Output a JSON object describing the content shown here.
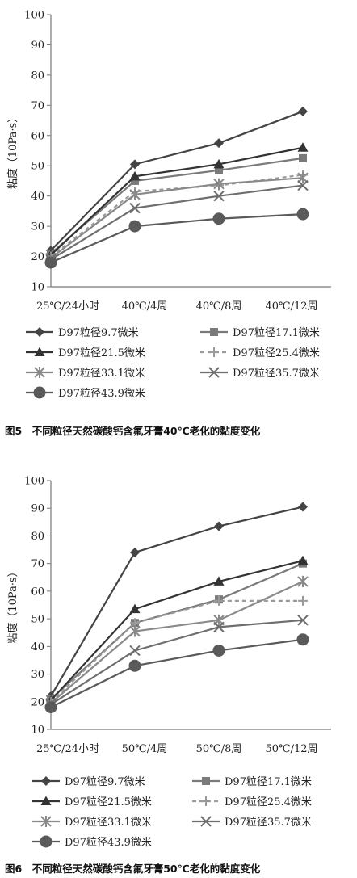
{
  "chart_data": [
    {
      "type": "line",
      "ylabel": "粘度（10Pa·s）",
      "ylim": [
        10,
        100
      ],
      "yticks": [
        "10",
        "20",
        "30",
        "40",
        "50",
        "60",
        "70",
        "80",
        "90",
        "100"
      ],
      "categories": [
        "25℃/24小时",
        "40℃/4周",
        "40℃/8周",
        "40℃/12周"
      ],
      "grid": false,
      "legend_position": "bottom",
      "series": [
        {
          "name": "D97粒径9.7微米",
          "values": [
            22,
            50.5,
            57.5,
            68
          ],
          "marker": "diamond",
          "dash": false
        },
        {
          "name": "D97粒径17.1微米",
          "values": [
            21,
            45,
            48.5,
            52.5
          ],
          "marker": "square",
          "dash": false
        },
        {
          "name": "D97粒径21.5微米",
          "values": [
            20.5,
            46.5,
            50.5,
            56
          ],
          "marker": "triangle",
          "dash": false
        },
        {
          "name": "D97粒径25.4微米",
          "values": [
            20,
            41.5,
            43.5,
            47
          ],
          "marker": "plus",
          "dash": true
        },
        {
          "name": "D97粒径33.1微米",
          "values": [
            19.5,
            40.5,
            44,
            46
          ],
          "marker": "asterisk",
          "dash": false
        },
        {
          "name": "D97粒径35.7微米",
          "values": [
            19,
            36,
            40,
            43.5
          ],
          "marker": "x",
          "dash": false
        },
        {
          "name": "D97粒径43.9微米",
          "values": [
            18,
            30,
            32.5,
            34
          ],
          "marker": "circle",
          "dash": false
        }
      ],
      "caption": "图5　不同粒径天然碳酸钙含氟牙膏40℃老化的黏度变化"
    },
    {
      "type": "line",
      "ylabel": "粘度（10Pa·s）",
      "ylim": [
        10,
        100
      ],
      "yticks": [
        "10",
        "20",
        "30",
        "40",
        "50",
        "60",
        "70",
        "80",
        "90",
        "100"
      ],
      "categories": [
        "25℃/24小时",
        "50℃/4周",
        "50℃/8周",
        "50℃/12周"
      ],
      "grid": false,
      "legend_position": "bottom",
      "series": [
        {
          "name": "D97粒径9.7微米",
          "values": [
            22,
            74,
            83.5,
            90.5
          ],
          "marker": "diamond",
          "dash": false
        },
        {
          "name": "D97粒径17.1微米",
          "values": [
            21,
            48.5,
            57,
            70
          ],
          "marker": "square",
          "dash": false
        },
        {
          "name": "D97粒径21.5微米",
          "values": [
            20.5,
            53.5,
            63.5,
            71
          ],
          "marker": "triangle",
          "dash": false
        },
        {
          "name": "D97粒径25.4微米",
          "values": [
            20,
            48.5,
            56.5,
            56.5
          ],
          "marker": "plus",
          "dash": true
        },
        {
          "name": "D97粒径33.1微米",
          "values": [
            19.5,
            45.5,
            49.5,
            63.5
          ],
          "marker": "asterisk",
          "dash": false
        },
        {
          "name": "D97粒径35.7微米",
          "values": [
            19,
            38.5,
            47,
            49.5
          ],
          "marker": "x",
          "dash": false
        },
        {
          "name": "D97粒径43.9微米",
          "values": [
            18,
            33,
            38.5,
            42.5
          ],
          "marker": "circle",
          "dash": false
        }
      ],
      "caption": "图6　不同粒径天然碳酸钙含氟牙膏50℃老化的黏度变化"
    }
  ]
}
